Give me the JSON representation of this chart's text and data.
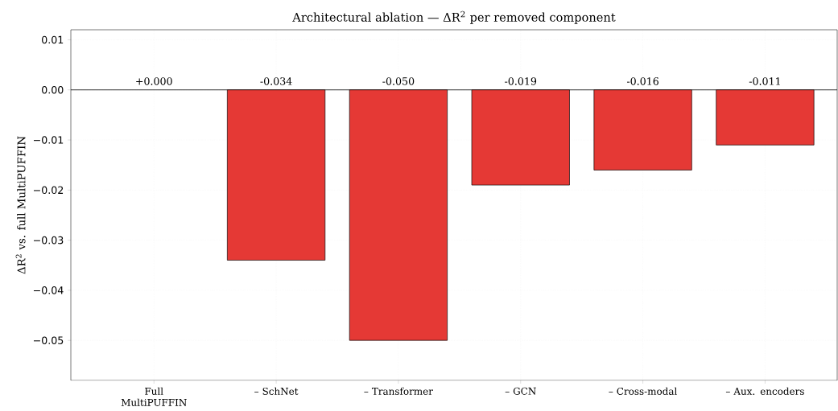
{
  "chart_data": {
    "type": "bar",
    "title": "Architectural ablation — ΔR$^{2}$ per removed component",
    "ylabel": "ΔR$^{2}$ vs. full MultiPUFFIN",
    "categories": [
      "Full MultiPUFFIN",
      "– SchNet",
      "– Transformer",
      "– GCN",
      "– Cross-modal",
      "– Aux. encoders"
    ],
    "values": [
      0.0,
      -0.034,
      -0.05,
      -0.019,
      -0.016,
      -0.011
    ],
    "value_labels": [
      "+0.000",
      "-0.034",
      "-0.050",
      "-0.019",
      "-0.016",
      "-0.011"
    ],
    "color": "#e53935",
    "ylim": [
      -0.058,
      0.012
    ],
    "yticks": [
      {
        "value": 0.01,
        "label": "0.01"
      },
      {
        "value": 0.0,
        "label": "0.00"
      },
      {
        "value": -0.01,
        "label": "−0.01"
      },
      {
        "value": -0.02,
        "label": "−0.02"
      },
      {
        "value": -0.03,
        "label": "−0.03"
      },
      {
        "value": -0.04,
        "label": "−0.04"
      },
      {
        "value": -0.05,
        "label": "−0.05"
      }
    ],
    "ref_lines": [
      {
        "axis": "y",
        "value": 0,
        "color": "#000000"
      }
    ],
    "grid": true
  }
}
